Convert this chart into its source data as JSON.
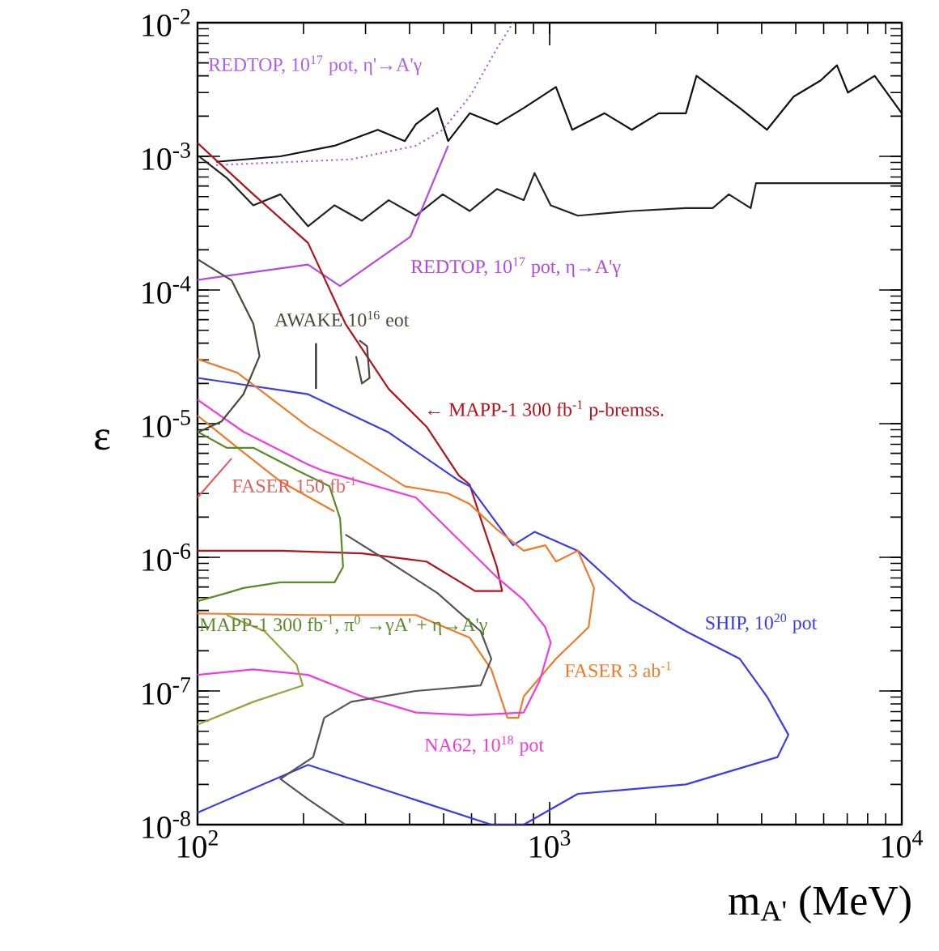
{
  "chart_data": {
    "type": "line",
    "xlabel": "m$_{A'}$ (MeV)",
    "ylabel": "ε",
    "log": "xy",
    "xlim": [
      100,
      10000
    ],
    "ylim": [
      1e-08,
      0.01
    ],
    "xticks": [
      {
        "value": 100,
        "label": "10$^{2}$"
      },
      {
        "value": 1000,
        "label": "10$^{3}$"
      },
      {
        "value": 10000,
        "label": "10$^{4}$"
      }
    ],
    "yticks": [
      {
        "value": 1e-08,
        "label": "10$^{-8}$"
      },
      {
        "value": 1e-07,
        "label": "10$^{-7}$"
      },
      {
        "value": 1e-06,
        "label": "10$^{-6}$"
      },
      {
        "value": 1e-05,
        "label": "10$^{-5}$"
      },
      {
        "value": 0.0001,
        "label": "10$^{-4}$"
      },
      {
        "value": 0.001,
        "label": "10$^{-3}$"
      },
      {
        "value": 0.01,
        "label": "10$^{-2}$"
      }
    ],
    "grid": false,
    "marker": "none",
    "series": [
      {
        "color": "#222222",
        "x": [
          101,
          121,
          144,
          172,
          206,
          245,
          293,
          349,
          417,
          497,
          593,
          708,
          844,
          906,
          1007,
          1202,
          1711,
          2437,
          2904,
          3228,
          3722,
          3855,
          10000
        ],
        "values": [
          0.001,
          0.00069,
          0.00043,
          0.00052,
          0.0003,
          0.00043,
          0.00033,
          0.00047,
          0.00036,
          0.00052,
          0.00039,
          0.00057,
          0.00047,
          0.00075,
          0.00043,
          0.00036,
          0.00039,
          0.00041,
          0.00041,
          0.00052,
          0.00041,
          0.00063,
          0.00063
        ]
      },
      {
        "color": "#111111",
        "x": [
          113,
          172,
          245,
          325,
          388,
          417,
          480,
          515,
          593,
          708,
          844,
          1042,
          1159,
          1432,
          1711,
          2041,
          2437,
          2612,
          3467,
          4140,
          4932,
          5888,
          6546,
          7031,
          8375,
          10000
        ],
        "values": [
          0.00091,
          0.001,
          0.0012,
          0.00158,
          0.0013,
          0.00174,
          0.0023,
          0.0013,
          0.0021,
          0.00174,
          0.0023,
          0.0033,
          0.00158,
          0.0021,
          0.00158,
          0.0021,
          0.0021,
          0.004,
          0.0023,
          0.00158,
          0.0028,
          0.0037,
          0.0048,
          0.003,
          0.004,
          0.0021
        ]
      },
      {
        "name": "REDTOP, 10$^{17}$ pot, η'→A'γ",
        "color": "#b060e8",
        "line_style": "dotted",
        "x": [
          113,
          273,
          417,
          497,
          593,
          708,
          787
        ],
        "values": [
          0.00086,
          0.00095,
          0.0012,
          0.00158,
          0.0028,
          0.0064,
          0.01
        ]
      },
      {
        "name": "REDTOP, 10$^{17}$ pot, η→A'γ",
        "color": "#b04ae0",
        "x": [
          100,
          206,
          254,
          402,
          515
        ],
        "values": [
          0.000119,
          0.000155,
          0.000107,
          0.00025,
          0.0012
        ]
      },
      {
        "name": "← MAPP-1 300 fb$^{-1}$ p-bremss.",
        "color": "#b5121b",
        "x": [
          100,
          144,
          206,
          263,
          349,
          447,
          552,
          593,
          637,
          708,
          733,
          614,
          447,
          293,
          172,
          100
        ],
        "values": [
          0.00126,
          0.00052,
          0.000225,
          5.6e-05,
          1.82e-05,
          9.5e-06,
          4.1e-06,
          3.5e-06,
          1.95e-06,
          8.5e-07,
          5.6e-07,
          5.6e-07,
          9.3e-07,
          1.07e-06,
          1.12e-06,
          1.12e-06
        ]
      },
      {
        "name": "SHIP, 10$^{20}$ pot",
        "color": "#3a3af0",
        "x": [
          100,
          206,
          683,
          844,
          1202,
          2437,
          4436,
          4764,
          4140,
          3467,
          2437,
          1711,
          1202,
          906,
          787,
          593,
          552,
          349,
          206,
          100
        ],
        "values": [
          1.23e-08,
          2.8e-08,
          1e-08,
          1e-08,
          1.7e-08,
          2e-08,
          3.2e-08,
          4.7e-08,
          9.1e-08,
          1.74e-07,
          2.8e-07,
          4.8e-07,
          1.12e-06,
          1.55e-06,
          1.23e-06,
          3.4e-06,
          3.75e-06,
          8.6e-06,
          1.66e-05,
          2.2e-05
        ]
      },
      {
        "name": "FASER 3 ab$^{-1}$",
        "color": "#f07a28",
        "x": [
          100,
          130,
          206,
          293,
          388,
          515,
          593,
          708,
          844,
          972,
          1042,
          1202,
          1337,
          1290,
          1042,
          844,
          815,
          759,
          683,
          593,
          417,
          206,
          100
        ],
        "values": [
          3.04e-05,
          2.4e-05,
          9.5e-06,
          5.4e-06,
          3.4e-06,
          3e-06,
          2.5e-06,
          1.62e-06,
          1.12e-06,
          1.23e-06,
          9.3e-07,
          1.12e-06,
          5.9e-07,
          3e-07,
          1.74e-07,
          9.1e-08,
          6.3e-08,
          6.3e-08,
          1.45e-07,
          2.5e-07,
          3.7e-07,
          3.7e-07,
          3.8e-07
        ]
      },
      {
        "color": "#f07a28",
        "x": [
          100,
          130,
          172,
          245
        ],
        "values": [
          1.15e-05,
          6.6e-06,
          3.7e-06,
          2.2e-06
        ]
      },
      {
        "name": "NA62, 10$^{18}$ pot",
        "color": "#f03cdc",
        "x": [
          100,
          135,
          206,
          229,
          417,
          708,
          844,
          972,
          1007,
          938,
          844,
          593,
          417,
          293,
          206,
          144,
          100
        ],
        "values": [
          1.51e-05,
          8.7e-06,
          4.95e-06,
          4.4e-06,
          2.8e-06,
          7.1e-07,
          4.8e-07,
          3e-07,
          2.3e-07,
          1.2e-07,
          6.9e-08,
          6.6e-08,
          6.9e-08,
          9.1e-08,
          1.32e-07,
          1.45e-07,
          1.32e-07
        ]
      },
      {
        "name": "MAPP-1 300 fb$^{-1}$, π$^{0}$ →γA' + η→A'γ",
        "color": "#5a8a2a",
        "x": [
          100,
          121,
          144,
          191,
          237,
          254,
          259,
          245,
          172,
          135,
          121,
          100
        ],
        "values": [
          8.7e-06,
          6.6e-06,
          6.6e-06,
          4.5e-06,
          3.4e-06,
          1.95e-06,
          8.5e-07,
          6.5e-07,
          6.5e-07,
          5.9e-07,
          5.4e-07,
          4.7e-07
        ]
      },
      {
        "name": "AWAKE 10$^{16}$ eot",
        "color": "#4a4a3a",
        "x": [
          100,
          125,
          144,
          150,
          135,
          117,
          101
        ],
        "values": [
          0.00017,
          0.000118,
          5.6e-05,
          3.2e-05,
          1.66e-05,
          1.04e-05,
          8.7e-06
        ]
      },
      {
        "color": "#4a4a3a",
        "x": [
          288,
          303,
          308,
          293,
          282
        ],
        "values": [
          4.2e-05,
          3.8e-05,
          2.2e-05,
          2e-05,
          3.2e-05
        ]
      },
      {
        "color": "#222222",
        "x": [
          217,
          217
        ],
        "values": [
          4e-05,
          1.82e-05
        ]
      },
      {
        "color": "#555555",
        "x": [
          263,
          349,
          480,
          637,
          683,
          637,
          417,
          273,
          229,
          213,
          172,
          206,
          263
        ],
        "values": [
          1.48e-06,
          9.3e-07,
          5.4e-07,
          2.8e-07,
          1.74e-07,
          1.1e-07,
          1e-07,
          8.3e-08,
          6.3e-08,
          3.2e-08,
          2.2e-08,
          1.55e-08,
          1e-08
        ]
      },
      {
        "color": "#a0a040",
        "x": [
          100,
          144,
          199,
          191,
          155,
          121
        ],
        "values": [
          5.6e-08,
          8.3e-08,
          1.1e-07,
          1.58e-07,
          2.8e-07,
          3.7e-07
        ]
      },
      {
        "name": "FASER 150 fb$^{-1}$",
        "color": "#e06060",
        "x": [
          100,
          125
        ],
        "values": [
          2.8e-06,
          5.5e-06
        ]
      }
    ]
  }
}
